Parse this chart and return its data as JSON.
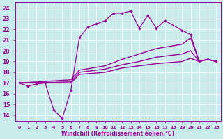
{
  "xlabel": "Windchill (Refroidissement éolien,°C)",
  "xlim": [
    -0.5,
    23.5
  ],
  "ylim": [
    13.5,
    24.5
  ],
  "xticks": [
    0,
    1,
    2,
    3,
    4,
    5,
    6,
    7,
    8,
    9,
    10,
    11,
    12,
    13,
    14,
    15,
    16,
    17,
    18,
    19,
    20,
    21,
    22,
    23
  ],
  "yticks": [
    14,
    15,
    16,
    17,
    18,
    19,
    20,
    21,
    22,
    23,
    24
  ],
  "bg_color": "#c8ecec",
  "line_color": "#990099",
  "grid_color": "#ffffff",
  "line1_x": [
    0,
    1,
    2,
    3,
    4,
    5,
    6,
    7,
    8,
    9,
    10,
    11,
    12,
    13,
    14,
    15,
    16,
    17,
    19,
    20,
    21,
    22,
    23
  ],
  "line1_y": [
    17.0,
    16.7,
    16.9,
    17.0,
    14.5,
    13.7,
    16.3,
    21.2,
    22.2,
    22.5,
    22.8,
    23.5,
    23.5,
    23.7,
    22.1,
    23.3,
    22.1,
    22.8,
    21.9,
    21.5,
    19.0,
    19.2,
    19.0
  ],
  "line2_x": [
    0,
    6,
    7,
    10,
    12,
    14,
    16,
    19,
    20,
    21,
    22,
    23
  ],
  "line2_y": [
    17.0,
    17.3,
    18.2,
    18.6,
    19.2,
    19.7,
    20.2,
    20.6,
    21.2,
    19.0,
    19.2,
    19.0
  ],
  "line3_x": [
    0,
    6,
    7,
    10,
    12,
    14,
    16,
    19,
    20,
    21,
    22,
    23
  ],
  "line3_y": [
    17.0,
    17.1,
    18.0,
    18.3,
    18.7,
    19.0,
    19.4,
    19.7,
    20.0,
    19.0,
    19.2,
    19.0
  ],
  "line4_x": [
    0,
    6,
    7,
    10,
    12,
    14,
    16,
    19,
    20,
    21,
    22,
    23
  ],
  "line4_y": [
    17.0,
    17.0,
    17.8,
    18.0,
    18.4,
    18.6,
    18.8,
    19.0,
    19.3,
    19.0,
    19.2,
    19.0
  ]
}
